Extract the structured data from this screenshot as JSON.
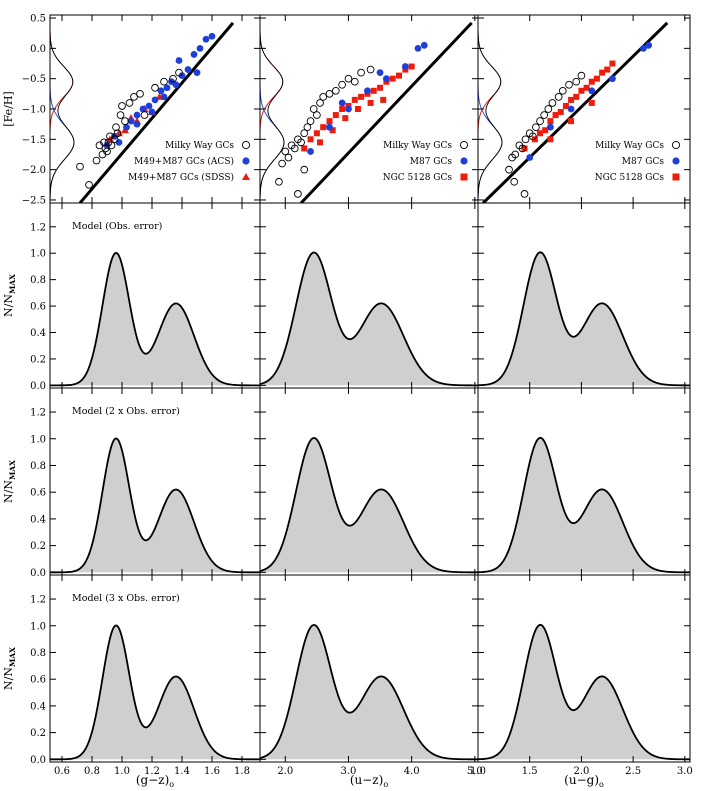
{
  "chart_data": {
    "type": "scatter",
    "columns": [
      {
        "xlabel": "(g−z)",
        "xlim": [
          0.52,
          1.92
        ],
        "xticks": [
          0.6,
          0.8,
          1.0,
          1.2,
          1.4,
          1.6,
          1.8
        ],
        "xtick_labels": [
          "0.6",
          "0.8",
          "1.0",
          "1.2",
          "1.4",
          "1.6",
          "1.8"
        ]
      },
      {
        "xlabel": "(u−z)",
        "xlim": [
          1.6,
          5.05
        ],
        "xticks": [
          2.0,
          3.0,
          4.0,
          5.0
        ],
        "xtick_labels": [
          "2.0",
          "3.0",
          "4.0",
          "5.0"
        ]
      },
      {
        "xlabel": "(u−g)",
        "xlim": [
          1.0,
          3.05
        ],
        "xticks": [
          1.0,
          1.5,
          2.0,
          2.5,
          3.0
        ],
        "xtick_labels": [
          "1.0",
          "1.5",
          "2.0",
          "2.5",
          "3.0"
        ]
      }
    ],
    "xlabel_subscript": "o",
    "top_row": {
      "ylabel": "[Fe/H]",
      "ylim": [
        -2.55,
        0.55
      ],
      "yticks": [
        0.5,
        0.0,
        -0.5,
        -1.0,
        -1.5,
        -2.0,
        -2.5
      ],
      "ytick_labels": [
        "0.5",
        "0.0",
        "−0.5",
        "−1.0",
        "−1.5",
        "−2.0",
        "−2.5"
      ],
      "panels": [
        {
          "legend": [
            "Milky Way GCs",
            "M49+M87 GCs (ACS)",
            "M49+M87 GCs (SDSS)"
          ],
          "relation": {
            "x": [
              0.72,
              1.74
            ],
            "y": [
              -2.55,
              0.42
            ]
          },
          "milky_way": {
            "x": [
              0.72,
              0.78,
              0.83,
              0.85,
              0.87,
              0.88,
              0.89,
              0.9,
              0.91,
              0.92,
              0.93,
              0.95,
              0.96,
              0.97,
              0.99,
              1.0,
              1.02,
              1.05,
              1.08,
              1.12,
              1.15,
              1.22,
              1.28,
              1.34,
              1.38
            ],
            "y": [
              -1.95,
              -2.25,
              -1.85,
              -1.6,
              -1.75,
              -1.55,
              -1.65,
              -1.7,
              -1.55,
              -1.45,
              -1.6,
              -1.5,
              -1.3,
              -1.4,
              -1.1,
              -0.95,
              -1.2,
              -0.9,
              -0.8,
              -0.75,
              -1.1,
              -0.65,
              -0.55,
              -0.5,
              -0.4
            ]
          },
          "acs": {
            "x": [
              0.9,
              0.95,
              0.98,
              1.03,
              1.06,
              1.1,
              1.14,
              1.18,
              1.22,
              1.26,
              1.3,
              1.33,
              1.36,
              1.4,
              1.44,
              1.48,
              1.52,
              1.56,
              1.6,
              1.38,
              1.5,
              1.28,
              1.1,
              1.2
            ],
            "y": [
              -1.6,
              -1.45,
              -1.55,
              -1.3,
              -1.2,
              -1.1,
              -1.0,
              -0.95,
              -0.85,
              -0.7,
              -0.65,
              -0.55,
              -0.6,
              -0.45,
              -0.35,
              -0.1,
              0.0,
              0.15,
              0.2,
              -0.2,
              -0.4,
              -0.8,
              -1.25,
              -1.05
            ]
          },
          "sdss": {
            "x": [
              0.92,
              0.98,
              1.02,
              1.06,
              1.1,
              1.15,
              1.2,
              1.25
            ],
            "y": [
              -1.5,
              -1.4,
              -1.35,
              -1.15,
              -1.2,
              -1.0,
              -1.05,
              -0.8
            ]
          }
        },
        {
          "legend": [
            "Milky Way GCs",
            "M87 GCs",
            "NGC 5128 GCs"
          ],
          "relation": {
            "x": [
              2.25,
              4.95
            ],
            "y": [
              -2.55,
              0.42
            ]
          },
          "milky_way": {
            "x": [
              1.9,
              1.95,
              2.0,
              2.05,
              2.1,
              2.15,
              2.2,
              2.25,
              2.3,
              2.35,
              2.4,
              2.45,
              2.5,
              2.55,
              2.6,
              2.7,
              2.8,
              2.9,
              3.0,
              3.1,
              3.2,
              3.35,
              2.2,
              2.3
            ],
            "y": [
              -2.2,
              -1.9,
              -1.7,
              -1.8,
              -1.6,
              -1.65,
              -1.5,
              -1.55,
              -1.4,
              -1.3,
              -1.2,
              -1.0,
              -1.1,
              -0.9,
              -0.8,
              -0.75,
              -0.7,
              -0.6,
              -0.5,
              -0.55,
              -0.4,
              -0.35,
              -2.4,
              -2.0
            ]
          },
          "acs": {
            "x": [
              2.4,
              2.7,
              3.0,
              3.3,
              3.6,
              3.9,
              4.1,
              4.2,
              3.5,
              2.9
            ],
            "y": [
              -1.7,
              -1.3,
              -1.0,
              -0.7,
              -0.5,
              -0.3,
              0.0,
              0.05,
              -0.4,
              -0.9
            ]
          },
          "sdss": {
            "x": [
              2.3,
              2.4,
              2.5,
              2.6,
              2.7,
              2.8,
              2.9,
              3.0,
              3.1,
              3.2,
              3.3,
              3.4,
              3.5,
              3.6,
              3.7,
              3.8,
              3.9,
              4.0,
              2.55,
              2.75,
              2.95,
              3.15,
              3.35,
              3.55
            ],
            "y": [
              -1.65,
              -1.5,
              -1.4,
              -1.3,
              -1.2,
              -1.1,
              -1.0,
              -0.95,
              -0.85,
              -0.8,
              -0.75,
              -0.7,
              -0.65,
              -0.55,
              -0.5,
              -0.45,
              -0.35,
              -0.3,
              -1.55,
              -1.35,
              -1.15,
              -1.0,
              -0.9,
              -0.85
            ]
          }
        },
        {
          "legend": [
            "Milky Way GCs",
            "M87 GCs",
            "NGC 5128 GCs"
          ],
          "relation": {
            "x": [
              1.05,
              2.83
            ],
            "y": [
              -2.55,
              0.42
            ]
          },
          "milky_way": {
            "x": [
              1.3,
              1.33,
              1.36,
              1.4,
              1.43,
              1.46,
              1.5,
              1.53,
              1.56,
              1.6,
              1.64,
              1.68,
              1.72,
              1.78,
              1.82,
              1.88,
              1.95,
              2.0,
              1.35,
              1.45
            ],
            "y": [
              -2.0,
              -1.8,
              -1.75,
              -1.6,
              -1.65,
              -1.5,
              -1.4,
              -1.45,
              -1.3,
              -1.2,
              -1.1,
              -1.0,
              -0.9,
              -0.8,
              -0.7,
              -0.6,
              -0.55,
              -0.45,
              -2.2,
              -2.4
            ]
          },
          "acs": {
            "x": [
              1.5,
              1.7,
              1.9,
              2.1,
              2.3,
              2.6,
              2.65
            ],
            "y": [
              -1.8,
              -1.3,
              -1.0,
              -0.7,
              -0.5,
              0.0,
              0.05
            ]
          },
          "sdss": {
            "x": [
              1.45,
              1.55,
              1.6,
              1.65,
              1.7,
              1.75,
              1.8,
              1.85,
              1.9,
              1.95,
              2.0,
              2.05,
              2.1,
              2.15,
              2.2,
              2.25,
              2.3,
              1.7,
              1.9,
              2.1
            ],
            "y": [
              -1.65,
              -1.5,
              -1.4,
              -1.35,
              -1.2,
              -1.1,
              -1.05,
              -0.95,
              -0.85,
              -0.8,
              -0.7,
              -0.65,
              -0.55,
              -0.5,
              -0.4,
              -0.35,
              -0.25,
              -1.5,
              -1.2,
              -0.9
            ]
          }
        }
      ]
    },
    "model_rows": {
      "ylabel": "N/N",
      "ylabel_subscript": "MAX",
      "ylim": [
        -0.02,
        1.38
      ],
      "yticks": [
        0.0,
        0.2,
        0.4,
        0.6,
        0.8,
        1.0,
        1.2
      ],
      "ytick_labels": [
        "0.0",
        "0.2",
        "0.4",
        "0.6",
        "0.8",
        "1.0",
        "1.2"
      ],
      "labels": [
        "Model (Obs. error)",
        "Model (2 x Obs. error)",
        "Model (3 x Obs. error)"
      ],
      "distributions": [
        {
          "p1": {
            "mu": 0.96,
            "sigma": 0.09,
            "a": 1.0
          },
          "p2": {
            "mu": 1.36,
            "sigma": 0.12,
            "a": 0.62
          }
        },
        {
          "p1": {
            "mu": 2.45,
            "sigma": 0.28,
            "a": 1.0
          },
          "p2": {
            "mu": 3.52,
            "sigma": 0.35,
            "a": 0.62
          }
        },
        {
          "p1": {
            "mu": 1.6,
            "sigma": 0.16,
            "a": 1.0
          },
          "p2": {
            "mu": 2.2,
            "sigma": 0.2,
            "a": 0.62
          }
        }
      ]
    }
  }
}
